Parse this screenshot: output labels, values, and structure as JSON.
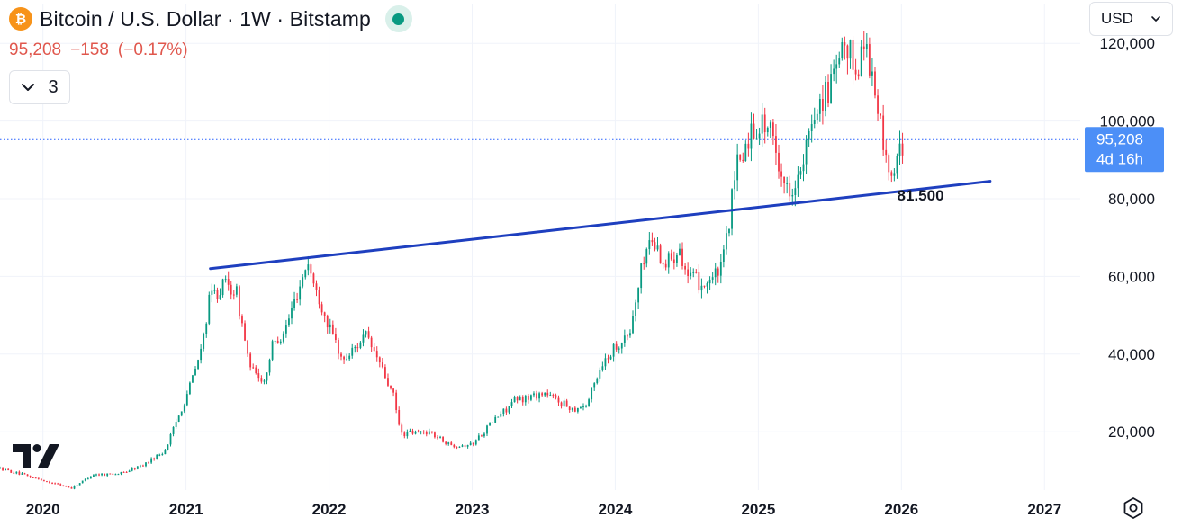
{
  "header": {
    "title": "Bitcoin / U.S. Dollar · 1W · Bitstamp",
    "coin_symbol": "₿",
    "coin_color": "#f7931a",
    "status_color": "#089981"
  },
  "quote": {
    "last": "95,208",
    "change": "−158",
    "change_pct": "(−0.17%)",
    "color": "#e0574d"
  },
  "indicator_toggle": {
    "count": "3"
  },
  "currency_select": {
    "value": "USD"
  },
  "price_tag": {
    "price": "95,208",
    "countdown": "4d 16h",
    "color": "#2962ff"
  },
  "annotation": {
    "text": "81.500"
  },
  "icons": [
    "bitcoin-icon",
    "status-dot-icon",
    "chevron-down-icon",
    "tradingview-logo-icon",
    "gear-icon"
  ],
  "chart_data": {
    "type": "candlestick",
    "ylim": [
      5000,
      130000
    ],
    "xlim": [
      2019.7,
      2027.25
    ],
    "yticks": [
      20000,
      40000,
      60000,
      80000,
      100000,
      120000
    ],
    "ytick_labels": [
      "20,000",
      "40,000",
      "60,000",
      "80,000",
      "100,000",
      "120,000"
    ],
    "xticks": [
      2020,
      2021,
      2022,
      2023,
      2024,
      2025,
      2026,
      2027
    ],
    "xtick_labels": [
      "2020",
      "2021",
      "2022",
      "2023",
      "2024",
      "2025",
      "2026",
      "2027"
    ],
    "up_color": "#089981",
    "down_color": "#f23645",
    "trendline": {
      "start": [
        2021.17,
        62000
      ],
      "end": [
        2026.62,
        84500
      ],
      "color": "#1e3fbf"
    },
    "current_price_line": 95208,
    "price_path": [
      [
        2019.7,
        10500
      ],
      [
        2019.85,
        9000
      ],
      [
        2020.0,
        7500
      ],
      [
        2020.2,
        5500
      ],
      [
        2020.35,
        9000
      ],
      [
        2020.55,
        9300
      ],
      [
        2020.7,
        11500
      ],
      [
        2020.85,
        15000
      ],
      [
        2021.0,
        29000
      ],
      [
        2021.1,
        40000
      ],
      [
        2021.17,
        55000
      ],
      [
        2021.28,
        58000
      ],
      [
        2021.35,
        56000
      ],
      [
        2021.45,
        36000
      ],
      [
        2021.55,
        33000
      ],
      [
        2021.6,
        42000
      ],
      [
        2021.7,
        47000
      ],
      [
        2021.85,
        64000
      ],
      [
        2021.9,
        57000
      ],
      [
        2022.0,
        47000
      ],
      [
        2022.1,
        38000
      ],
      [
        2022.25,
        45000
      ],
      [
        2022.35,
        38000
      ],
      [
        2022.45,
        29000
      ],
      [
        2022.5,
        19500
      ],
      [
        2022.7,
        20000
      ],
      [
        2022.85,
        16500
      ],
      [
        2023.0,
        16800
      ],
      [
        2023.15,
        23000
      ],
      [
        2023.3,
        28000
      ],
      [
        2023.5,
        30000
      ],
      [
        2023.7,
        26000
      ],
      [
        2023.8,
        27000
      ],
      [
        2023.9,
        37000
      ],
      [
        2024.0,
        42000
      ],
      [
        2024.1,
        45000
      ],
      [
        2024.2,
        65000
      ],
      [
        2024.25,
        70000
      ],
      [
        2024.35,
        63000
      ],
      [
        2024.45,
        68000
      ],
      [
        2024.5,
        60000
      ],
      [
        2024.6,
        58000
      ],
      [
        2024.7,
        60000
      ],
      [
        2024.75,
        63000
      ],
      [
        2024.85,
        88000
      ],
      [
        2024.95,
        97000
      ],
      [
        2025.05,
        100000
      ],
      [
        2025.1,
        95000
      ],
      [
        2025.2,
        82000
      ],
      [
        2025.3,
        86000
      ],
      [
        2025.4,
        104000
      ],
      [
        2025.5,
        108000
      ],
      [
        2025.6,
        118000
      ],
      [
        2025.7,
        114000
      ],
      [
        2025.75,
        122000
      ],
      [
        2025.8,
        110000
      ],
      [
        2025.85,
        100000
      ],
      [
        2025.9,
        88000
      ],
      [
        2025.95,
        86000
      ],
      [
        2026.02,
        95208
      ]
    ]
  }
}
